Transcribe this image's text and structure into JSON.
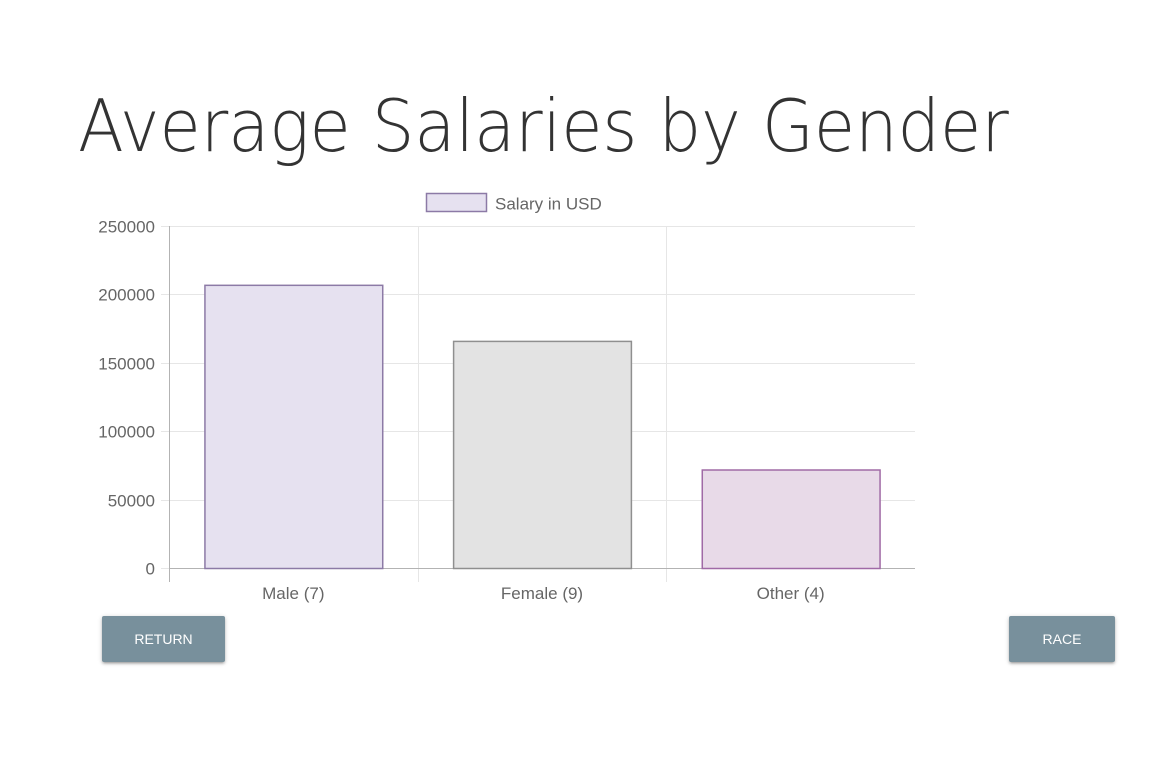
{
  "page": {
    "title": "Average Salaries by Gender"
  },
  "buttons": {
    "return_label": "RETURN",
    "race_label": "RACE"
  },
  "colors": {
    "button_bg": "#78909c",
    "grid": "#e6e6e6",
    "axis": "#b3b3b3"
  },
  "chart_data": {
    "type": "bar",
    "title": "",
    "xlabel": "",
    "ylabel": "",
    "categories": [
      "Male (7)",
      "Female (9)",
      "Other (4)"
    ],
    "series": [
      {
        "name": "Salary in USD",
        "values": [
          207000,
          166000,
          72000
        ],
        "fill_colors": [
          "#e6e1f0",
          "#e3e3e3",
          "#e8dae8"
        ],
        "border_colors": [
          "#8c7aa6",
          "#8f8f8f",
          "#a06aa6"
        ]
      }
    ],
    "ylim": [
      0,
      250000
    ],
    "yticks": [
      0,
      50000,
      100000,
      150000,
      200000,
      250000
    ],
    "ytick_labels": [
      "0",
      "50000",
      "100000",
      "150000",
      "200000",
      "250000"
    ],
    "grid": true,
    "legend": "top-center",
    "legend_swatch_fill": "#e6e1f0",
    "legend_swatch_border": "#8c7aa6"
  }
}
